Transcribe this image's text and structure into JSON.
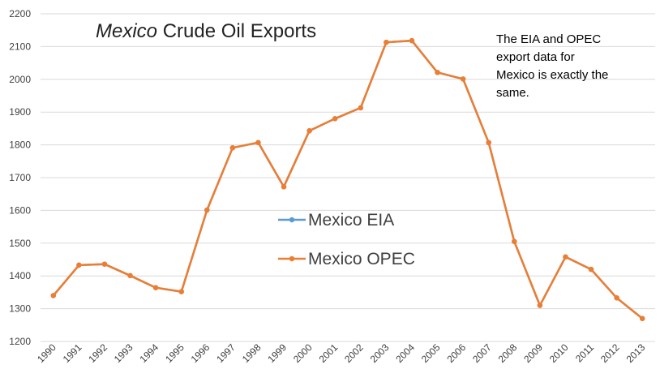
{
  "chart_data": {
    "type": "line",
    "title_italic": "Mexico",
    "title_rest": " Crude Oil Exports",
    "xlabel": "",
    "ylabel": "",
    "ylim": [
      1200,
      2200
    ],
    "y_ticks": [
      "1200",
      "1300",
      "1400",
      "1500",
      "1600",
      "1700",
      "1800",
      "1900",
      "2000",
      "2100",
      "2200"
    ],
    "grid": true,
    "categories": [
      "1990",
      "1991",
      "1992",
      "1993",
      "1994",
      "1995",
      "1996",
      "1997",
      "1998",
      "1999",
      "2000",
      "2001",
      "2002",
      "2003",
      "2004",
      "2005",
      "2006",
      "2007",
      "2008",
      "2009",
      "2010",
      "2011",
      "2012",
      "2013"
    ],
    "series": [
      {
        "name": "Mexico EIA",
        "color": "#5b9bd5",
        "values": [
          1340,
          1433,
          1436,
          1401,
          1364,
          1352,
          1601,
          1791,
          1807,
          1672,
          1843,
          1880,
          1913,
          2113,
          2118,
          2021,
          2001,
          1807,
          1505,
          1310,
          1458,
          1420,
          1333,
          1270
        ]
      },
      {
        "name": "Mexico OPEC",
        "color": "#ed7d31",
        "values": [
          1340,
          1433,
          1436,
          1401,
          1364,
          1352,
          1601,
          1791,
          1807,
          1672,
          1843,
          1880,
          1913,
          2113,
          2118,
          2021,
          2001,
          1807,
          1505,
          1310,
          1458,
          1420,
          1333,
          1270
        ]
      }
    ],
    "legend_placement": "center",
    "annotation": [
      "The EIA and OPEC",
      "export data for",
      "Mexico is exactly the",
      "same."
    ]
  }
}
